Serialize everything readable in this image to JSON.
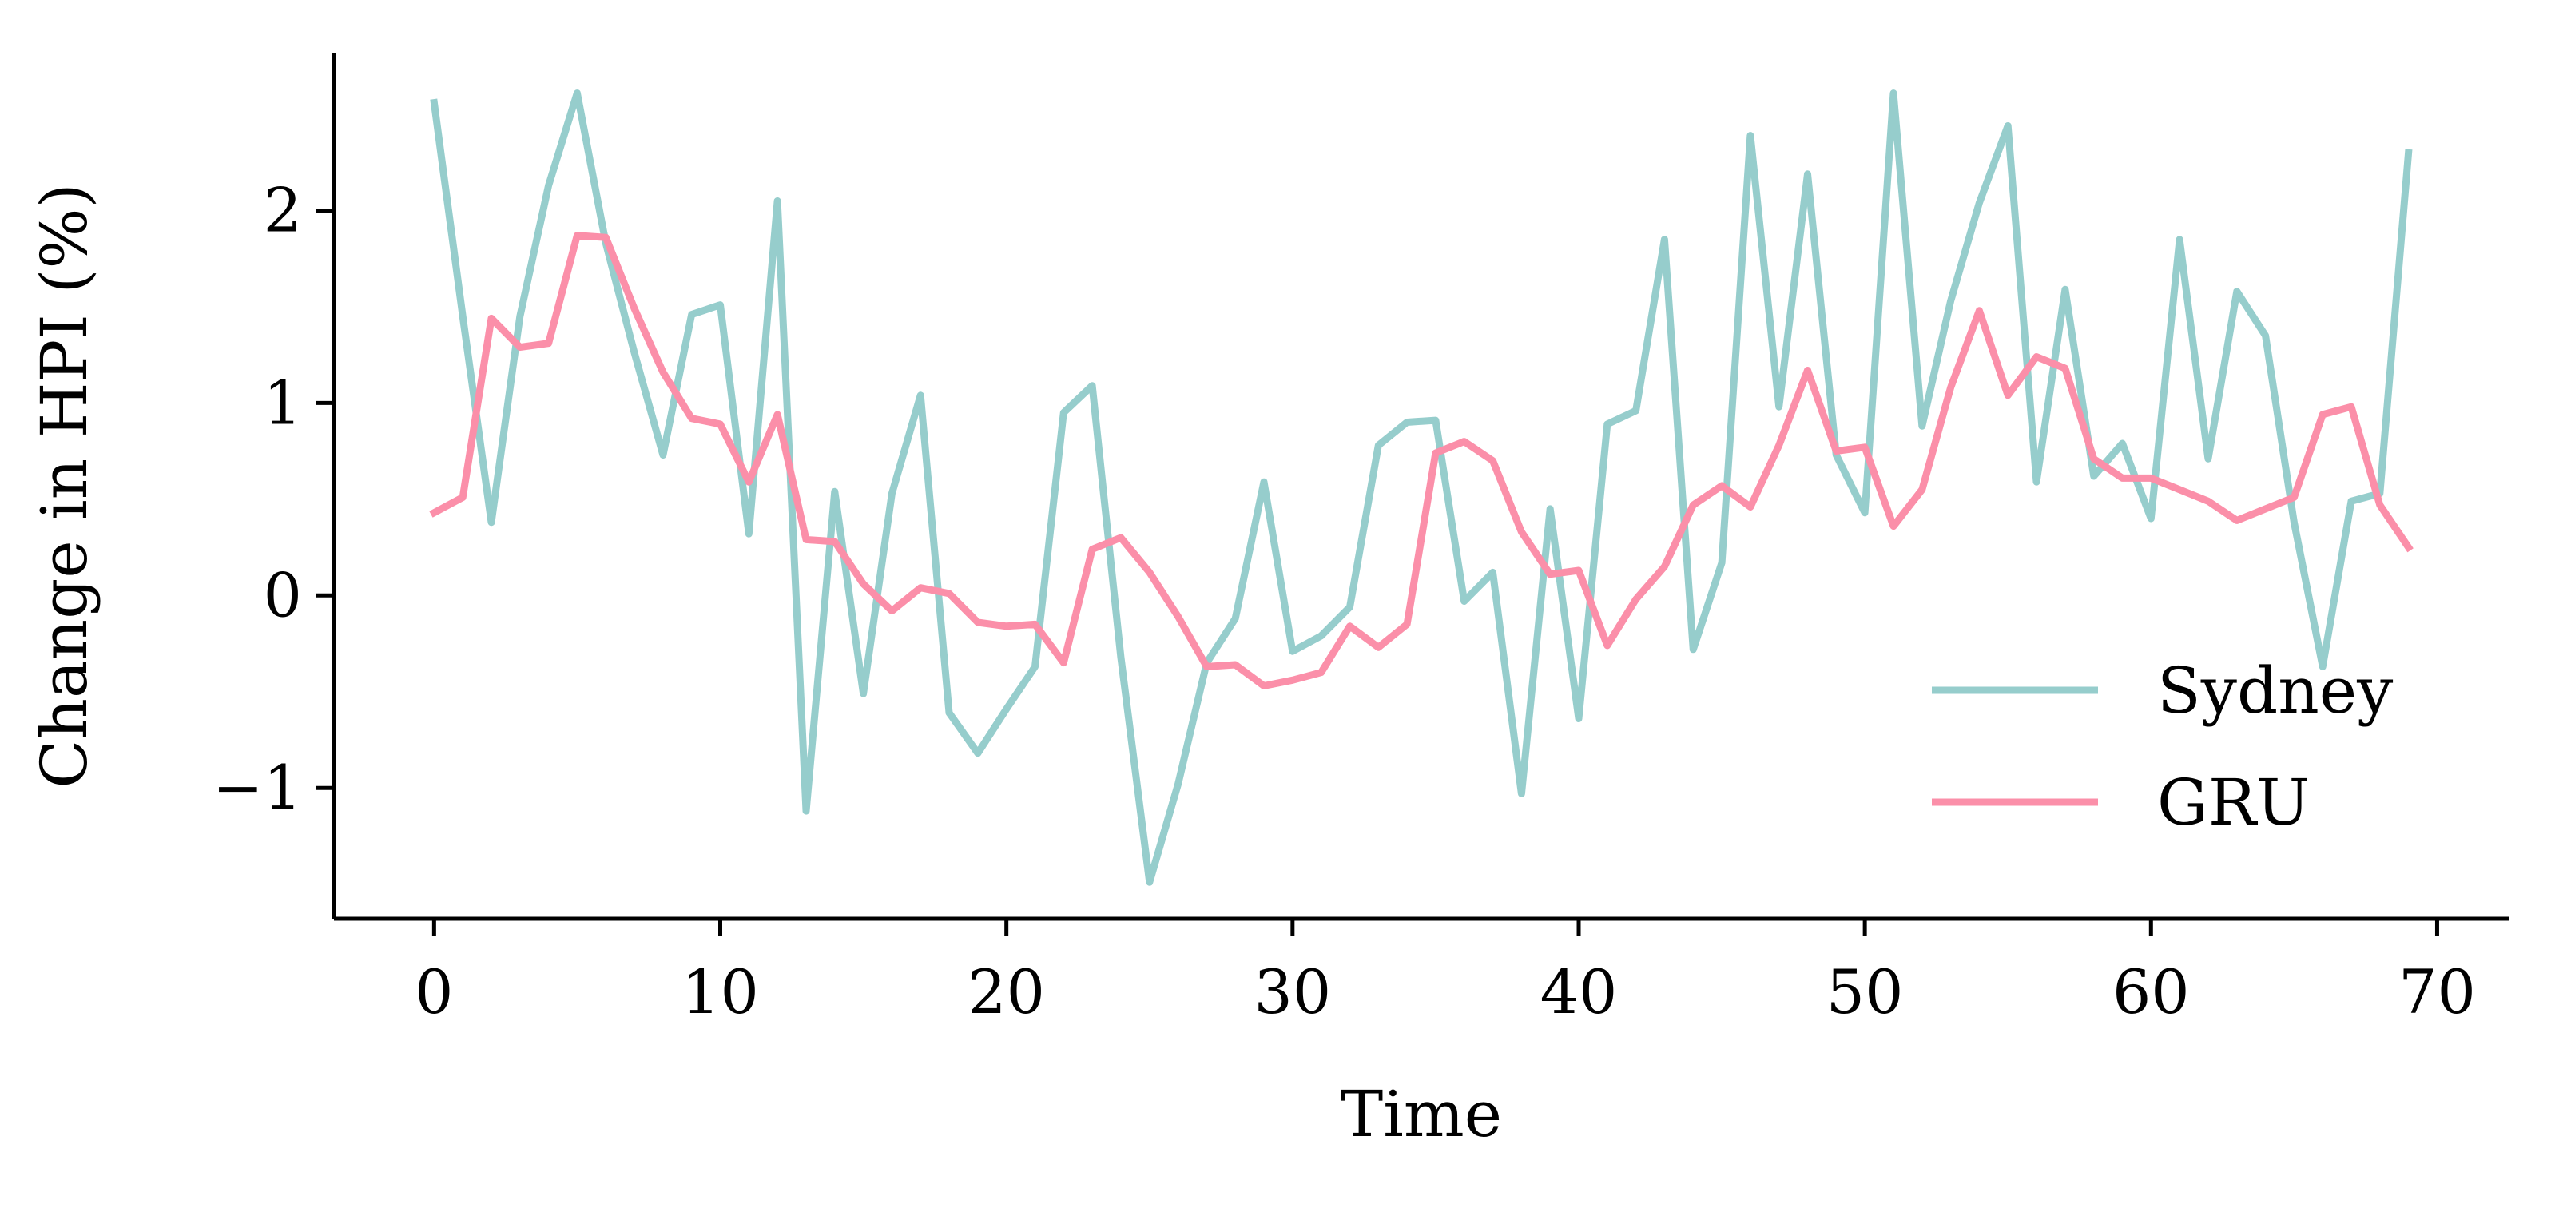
{
  "chart_data": {
    "type": "line",
    "title": "",
    "xlabel": "Time",
    "ylabel": "Change in HPI (%)",
    "xlim": [
      -3.5,
      72.5
    ],
    "ylim": [
      -1.68,
      2.82
    ],
    "xticks": [
      0,
      10,
      20,
      30,
      40,
      50,
      60,
      70
    ],
    "xtick_labels": [
      "0",
      "10",
      "20",
      "30",
      "40",
      "50",
      "60",
      "70"
    ],
    "yticks": [
      -1,
      0,
      1,
      2
    ],
    "ytick_labels": [
      "−1",
      "0",
      "1",
      "2"
    ],
    "grid": false,
    "legend_position": "lower right",
    "x": [
      0,
      1,
      2,
      3,
      4,
      5,
      6,
      7,
      8,
      9,
      10,
      11,
      12,
      13,
      14,
      15,
      16,
      17,
      18,
      19,
      20,
      21,
      22,
      23,
      24,
      25,
      26,
      27,
      28,
      29,
      30,
      31,
      32,
      33,
      34,
      35,
      36,
      37,
      38,
      39,
      40,
      41,
      42,
      43,
      44,
      45,
      46,
      47,
      48,
      49,
      50,
      51,
      52,
      53,
      54,
      55,
      56,
      57,
      58,
      59,
      60,
      61,
      62,
      63,
      64,
      65,
      66,
      67,
      68,
      69
    ],
    "series": [
      {
        "name": "Sydney",
        "color": "#96cdcc",
        "values": [
          2.56,
          1.45,
          0.38,
          1.45,
          2.13,
          2.61,
          1.83,
          1.26,
          0.73,
          1.46,
          1.51,
          0.32,
          2.05,
          -1.12,
          0.54,
          -0.51,
          0.53,
          1.04,
          -0.61,
          -0.82,
          -0.59,
          -0.37,
          0.95,
          1.09,
          -0.32,
          -1.49,
          -0.98,
          -0.35,
          -0.12,
          0.59,
          -0.29,
          -0.21,
          -0.06,
          0.78,
          0.9,
          0.91,
          -0.03,
          0.12,
          -1.03,
          0.45,
          -0.64,
          0.89,
          0.96,
          1.85,
          -0.28,
          0.17,
          2.39,
          0.98,
          2.19,
          0.73,
          0.43,
          2.61,
          0.88,
          1.53,
          2.04,
          2.44,
          0.59,
          1.59,
          0.62,
          0.79,
          0.4,
          1.85,
          0.71,
          1.58,
          1.35,
          0.38,
          -0.37,
          0.49,
          0.53,
          2.3
        ]
      },
      {
        "name": "GRU",
        "color": "#fb8fa9",
        "values": [
          0.43,
          0.51,
          1.44,
          1.29,
          1.31,
          1.87,
          1.86,
          1.49,
          1.16,
          0.92,
          0.89,
          0.59,
          0.94,
          0.29,
          0.28,
          0.06,
          -0.08,
          0.04,
          0.01,
          -0.14,
          -0.16,
          -0.15,
          -0.35,
          0.24,
          0.3,
          0.12,
          -0.11,
          -0.37,
          -0.36,
          -0.47,
          -0.44,
          -0.4,
          -0.16,
          -0.27,
          -0.15,
          0.74,
          0.8,
          0.7,
          0.33,
          0.11,
          0.13,
          -0.26,
          -0.02,
          0.15,
          0.47,
          0.57,
          0.46,
          0.78,
          1.17,
          0.75,
          0.77,
          0.36,
          0.55,
          1.08,
          1.48,
          1.04,
          1.24,
          1.18,
          0.71,
          0.61,
          0.61,
          0.55,
          0.49,
          0.39,
          0.45,
          0.51,
          0.94,
          0.98,
          0.47,
          0.25
        ]
      }
    ]
  }
}
